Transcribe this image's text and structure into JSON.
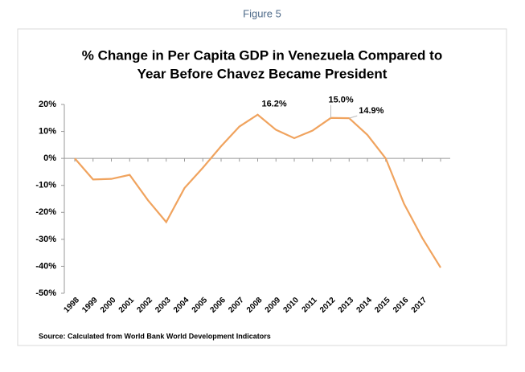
{
  "figure_label": "Figure 5",
  "chart_data": {
    "type": "line",
    "title": [
      "% Change in Per Capita GDP in Venezuela Compared to",
      "Year Before Chavez Became President"
    ],
    "categories": [
      "1998",
      "1999",
      "2000",
      "2001",
      "2002",
      "2003",
      "2004",
      "2005",
      "2006",
      "2007",
      "2008",
      "2009",
      "2010",
      "2011",
      "2012",
      "2013",
      "2014",
      "2015",
      "2016",
      "2017",
      null
    ],
    "series": [
      {
        "color": "#f0a35e",
        "values": [
          0,
          -7.8,
          -7.6,
          -6.1,
          -15.5,
          -23.6,
          -11,
          -3.5,
          4.5,
          11.8,
          16.2,
          10.6,
          7.5,
          10.3,
          15.0,
          14.9,
          8.7,
          0,
          -16.8,
          -29.5,
          -40.5
        ],
        "value_labels": [
          null,
          null,
          null,
          null,
          null,
          null,
          null,
          null,
          null,
          null,
          "16.2%",
          null,
          null,
          null,
          "15.0%",
          "14.9%",
          null,
          null,
          null,
          null,
          null
        ]
      }
    ],
    "ylim": [
      -50,
      20
    ],
    "yticks": [
      {
        "value": 20,
        "label": "20%"
      },
      {
        "value": 10,
        "label": "10%"
      },
      {
        "value": 0,
        "label": "0%"
      },
      {
        "value": -10,
        "label": "-10%"
      },
      {
        "value": -20,
        "label": "-20%"
      },
      {
        "value": -30,
        "label": "-30%"
      },
      {
        "value": -40,
        "label": "-40%"
      },
      {
        "value": -50,
        "label": "-50%"
      }
    ],
    "grid": false,
    "source": "Source: Calculated from World Bank World Development Indicators"
  }
}
